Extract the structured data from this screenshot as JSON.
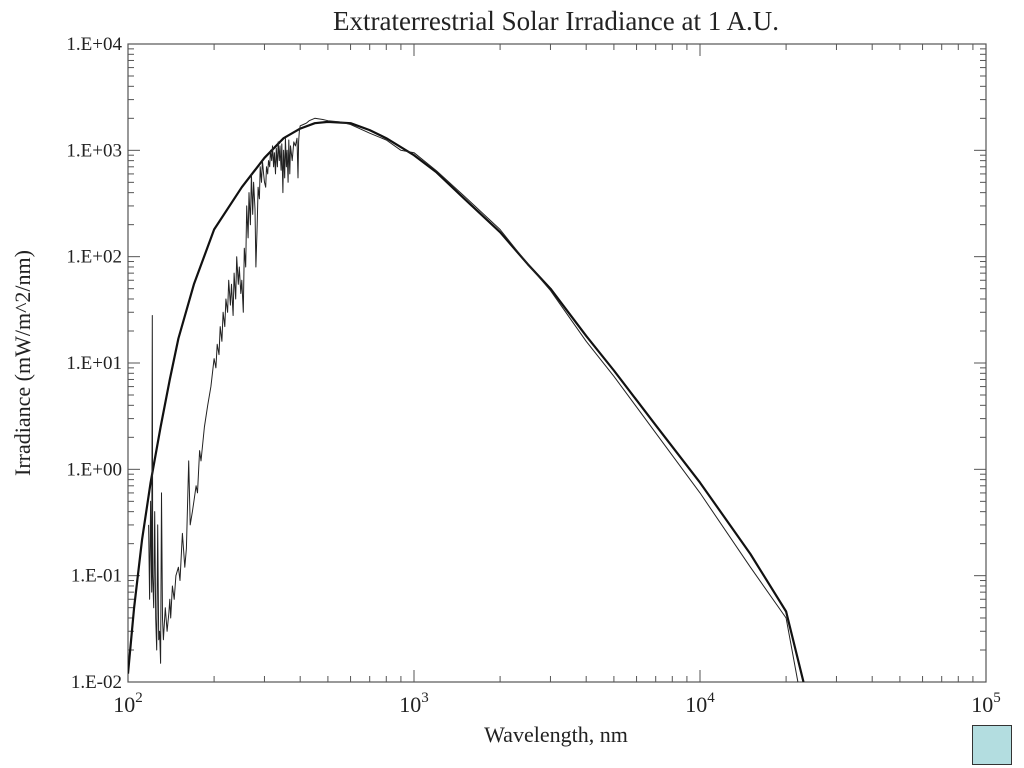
{
  "chart_data": {
    "type": "line",
    "title": "Extraterrestrial Solar Irradiance at 1 A.U.",
    "xlabel": "Wavelength, nm",
    "ylabel": "Irradiance (mW/m^2/nm)",
    "xscale": "log",
    "yscale": "log",
    "xlim": [
      100,
      100000
    ],
    "ylim": [
      0.01,
      10000
    ],
    "legend": "none",
    "grid": false,
    "x_ticks": [
      {
        "base": "10",
        "exp": "2",
        "value": 100
      },
      {
        "base": "10",
        "exp": "3",
        "value": 1000
      },
      {
        "base": "10",
        "exp": "4",
        "value": 10000
      },
      {
        "base": "10",
        "exp": "5",
        "value": 100000
      }
    ],
    "y_ticks": [
      {
        "label": "1.E-02",
        "value": 0.01
      },
      {
        "label": "1.E-01",
        "value": 0.1
      },
      {
        "label": "1.E+00",
        "value": 1
      },
      {
        "label": "1.E+01",
        "value": 10
      },
      {
        "label": "1.E+02",
        "value": 100
      },
      {
        "label": "1.E+03",
        "value": 1000
      },
      {
        "label": "1.E+04",
        "value": 10000
      }
    ],
    "series": [
      {
        "style": "thick smooth",
        "x": [
          100,
          105,
          112,
          120,
          130,
          140,
          150,
          170,
          200,
          250,
          300,
          350,
          400,
          450,
          500,
          600,
          700,
          800,
          1000,
          1200,
          1500,
          2000,
          2500,
          3000,
          4000,
          5000,
          7000,
          10000,
          15000,
          20000,
          23000
        ],
        "y": [
          0.012,
          0.05,
          0.22,
          0.75,
          2.5,
          7,
          17,
          55,
          180,
          450,
          850,
          1300,
          1600,
          1800,
          1850,
          1800,
          1550,
          1300,
          900,
          620,
          350,
          170,
          85,
          50,
          18,
          8.5,
          2.6,
          0.75,
          0.16,
          0.046,
          0.01
        ]
      },
      {
        "style": "thin measured",
        "x": [
          118,
          119,
          120,
          121,
          121.6,
          122,
          123,
          124,
          125,
          126,
          127,
          128,
          129,
          130,
          131,
          132,
          133,
          135,
          137,
          139,
          140,
          141,
          143,
          145,
          147,
          150,
          152,
          155,
          158,
          160,
          163,
          165,
          168,
          170,
          173,
          175,
          178,
          180,
          185,
          190,
          195,
          200,
          203,
          205,
          208,
          210,
          213,
          215,
          218,
          220,
          223,
          225,
          228,
          230,
          233,
          235,
          238,
          240,
          243,
          245,
          248,
          250,
          253,
          255,
          258,
          260,
          263,
          265,
          268,
          270,
          273,
          275,
          278,
          280,
          283,
          285,
          288,
          290,
          293,
          295,
          298,
          300,
          303,
          305,
          308,
          310,
          313,
          315,
          318,
          320,
          323,
          325,
          328,
          330,
          333,
          335,
          338,
          340,
          343,
          345,
          348,
          350,
          353,
          355,
          358,
          360,
          363,
          365,
          368,
          370,
          375,
          380,
          385,
          390,
          393,
          395,
          397,
          400,
          410,
          420,
          430,
          450,
          480,
          500,
          550,
          600,
          700,
          800,
          900,
          1000,
          1200,
          1500,
          2000,
          2500,
          3000,
          4000,
          5000,
          7000,
          10000,
          15000,
          20000,
          22000
        ],
        "y": [
          0.3,
          0.06,
          0.5,
          0.07,
          28,
          0.1,
          0.05,
          0.4,
          0.04,
          0.02,
          0.3,
          0.025,
          0.03,
          0.015,
          0.6,
          0.04,
          0.025,
          0.05,
          0.03,
          0.045,
          0.06,
          0.04,
          0.08,
          0.06,
          0.1,
          0.12,
          0.09,
          0.25,
          0.12,
          0.18,
          1.2,
          0.3,
          0.4,
          0.5,
          0.7,
          0.6,
          1.5,
          1.2,
          2.5,
          4,
          6,
          11,
          9,
          15,
          12,
          22,
          16,
          30,
          22,
          40,
          30,
          60,
          35,
          55,
          28,
          70,
          40,
          100,
          55,
          80,
          45,
          60,
          30,
          120,
          80,
          300,
          150,
          400,
          200,
          600,
          250,
          500,
          280,
          80,
          200,
          450,
          350,
          700,
          500,
          800,
          600,
          500,
          450,
          700,
          600,
          800,
          700,
          1000,
          800,
          1100,
          700,
          950,
          600,
          1050,
          700,
          1200,
          800,
          1100,
          650,
          1150,
          400,
          1000,
          550,
          1300,
          700,
          1000,
          500,
          1250,
          600,
          1100,
          800,
          1200,
          1100,
          1300,
          550,
          1200,
          1500,
          1700,
          1750,
          1800,
          1900,
          2000,
          1950,
          1900,
          1850,
          1750,
          1450,
          1250,
          1000,
          950,
          640,
          370,
          180,
          85,
          48,
          16,
          7.5,
          2.2,
          0.6,
          0.12,
          0.04,
          0.01
        ]
      }
    ]
  }
}
